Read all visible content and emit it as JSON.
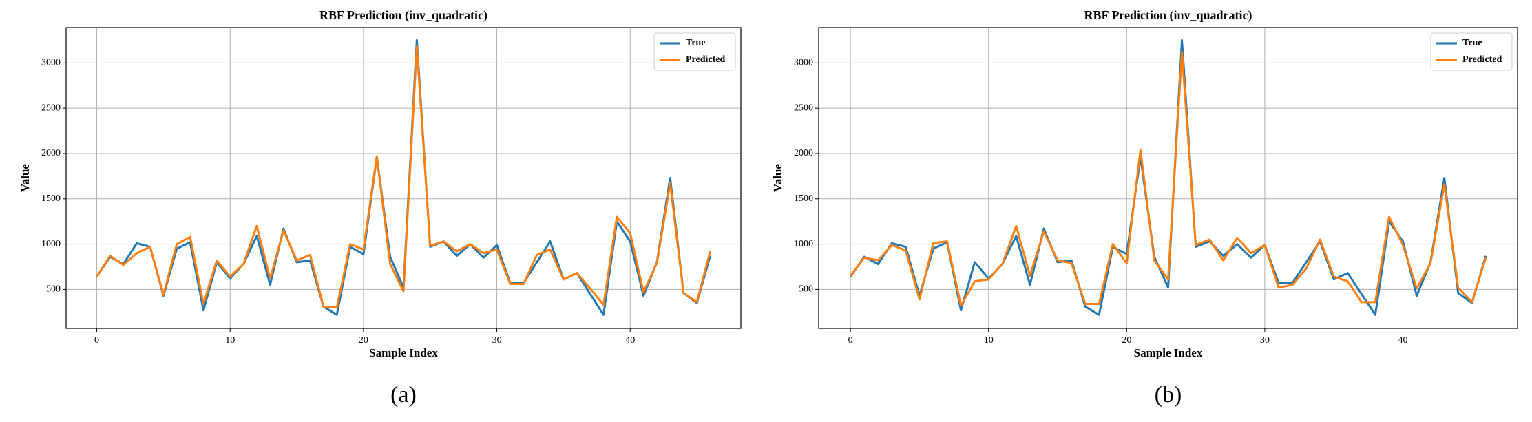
{
  "chart_data": [
    {
      "type": "line",
      "title": "RBF Prediction (inv_quadratic)",
      "x_label": "Sample Index",
      "y_label": "Value",
      "caption": "(a)",
      "x": [
        0,
        1,
        2,
        3,
        4,
        5,
        6,
        7,
        8,
        9,
        10,
        11,
        12,
        13,
        14,
        15,
        16,
        17,
        18,
        19,
        20,
        21,
        22,
        23,
        24,
        25,
        26,
        27,
        28,
        29,
        30,
        31,
        32,
        33,
        34,
        35,
        36,
        37,
        38,
        39,
        40,
        41,
        42,
        43,
        44,
        45,
        46
      ],
      "xlim": [
        -2.3,
        48.3
      ],
      "xticks": [
        0,
        10,
        20,
        30,
        40
      ],
      "ylim": [
        70,
        3390
      ],
      "yticks": [
        500,
        1000,
        1500,
        2000,
        2500,
        3000
      ],
      "grid": true,
      "legend": "upper right",
      "series": [
        {
          "name": "True",
          "color": "#1f77b4",
          "values": [
            640,
            860,
            780,
            1010,
            970,
            430,
            950,
            1020,
            270,
            800,
            620,
            780,
            1090,
            550,
            1170,
            800,
            820,
            310,
            220,
            970,
            890,
            1960,
            860,
            520,
            3250,
            970,
            1030,
            870,
            1000,
            850,
            990,
            570,
            570,
            800,
            1030,
            610,
            680,
            450,
            220,
            1250,
            1030,
            430,
            800,
            1730,
            460,
            350,
            870
          ]
        },
        {
          "name": "Predicted",
          "color": "#ff7f0e",
          "values": [
            640,
            870,
            770,
            900,
            970,
            440,
            1000,
            1080,
            340,
            820,
            640,
            780,
            1200,
            620,
            1150,
            820,
            880,
            310,
            300,
            1000,
            940,
            1970,
            780,
            480,
            3180,
            980,
            1030,
            920,
            1000,
            900,
            940,
            560,
            560,
            880,
            940,
            610,
            680,
            510,
            330,
            1300,
            1120,
            470,
            790,
            1670,
            460,
            360,
            920
          ]
        }
      ]
    },
    {
      "type": "line",
      "title": "RBF Prediction (inv_quadratic)",
      "x_label": "Sample Index",
      "y_label": "Value",
      "caption": "(b)",
      "x": [
        0,
        1,
        2,
        3,
        4,
        5,
        6,
        7,
        8,
        9,
        10,
        11,
        12,
        13,
        14,
        15,
        16,
        17,
        18,
        19,
        20,
        21,
        22,
        23,
        24,
        25,
        26,
        27,
        28,
        29,
        30,
        31,
        32,
        33,
        34,
        35,
        36,
        37,
        38,
        39,
        40,
        41,
        42,
        43,
        44,
        45,
        46
      ],
      "xlim": [
        -2.3,
        48.3
      ],
      "xticks": [
        0,
        10,
        20,
        30,
        40
      ],
      "ylim": [
        70,
        3390
      ],
      "yticks": [
        500,
        1000,
        1500,
        2000,
        2500,
        3000
      ],
      "grid": true,
      "legend": "upper right",
      "series": [
        {
          "name": "True",
          "color": "#1f77b4",
          "values": [
            640,
            860,
            780,
            1010,
            970,
            430,
            950,
            1020,
            270,
            800,
            620,
            780,
            1090,
            550,
            1170,
            800,
            820,
            310,
            220,
            970,
            890,
            1960,
            860,
            520,
            3250,
            970,
            1030,
            870,
            1000,
            850,
            990,
            570,
            570,
            800,
            1030,
            610,
            680,
            450,
            220,
            1250,
            1030,
            430,
            800,
            1730,
            460,
            350,
            870
          ]
        },
        {
          "name": "Predicted",
          "color": "#ff7f0e",
          "values": [
            650,
            850,
            820,
            990,
            930,
            390,
            1010,
            1030,
            320,
            590,
            610,
            780,
            1200,
            650,
            1140,
            820,
            790,
            340,
            340,
            1000,
            790,
            2040,
            820,
            610,
            3120,
            990,
            1050,
            820,
            1070,
            900,
            990,
            520,
            550,
            730,
            1050,
            640,
            590,
            360,
            360,
            1300,
            990,
            510,
            790,
            1660,
            520,
            360,
            850
          ]
        }
      ]
    }
  ]
}
